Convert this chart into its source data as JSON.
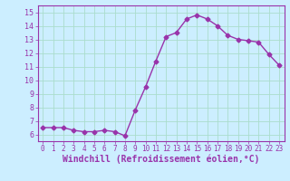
{
  "x": [
    0,
    1,
    2,
    3,
    4,
    5,
    6,
    7,
    8,
    9,
    10,
    11,
    12,
    13,
    14,
    15,
    16,
    17,
    18,
    19,
    20,
    21,
    22,
    23
  ],
  "y": [
    6.5,
    6.5,
    6.5,
    6.3,
    6.2,
    6.2,
    6.3,
    6.2,
    5.9,
    7.8,
    9.5,
    11.4,
    13.2,
    13.5,
    14.5,
    14.8,
    14.5,
    14.0,
    13.3,
    13.0,
    12.9,
    12.8,
    11.9,
    11.1
  ],
  "line_color": "#9933aa",
  "marker": "D",
  "marker_size": 2.5,
  "xlabel": "Windchill (Refroidissement éolien,°C)",
  "xlabel_fontsize": 7,
  "bg_color": "#cceeff",
  "grid_color": "#aaddcc",
  "tick_color": "#9933aa",
  "ylim": [
    5.5,
    15.5
  ],
  "xlim": [
    -0.5,
    23.5
  ],
  "yticks": [
    6,
    7,
    8,
    9,
    10,
    11,
    12,
    13,
    14,
    15
  ],
  "xticks": [
    0,
    1,
    2,
    3,
    4,
    5,
    6,
    7,
    8,
    9,
    10,
    11,
    12,
    13,
    14,
    15,
    16,
    17,
    18,
    19,
    20,
    21,
    22,
    23
  ],
  "spine_color": "#9933aa"
}
